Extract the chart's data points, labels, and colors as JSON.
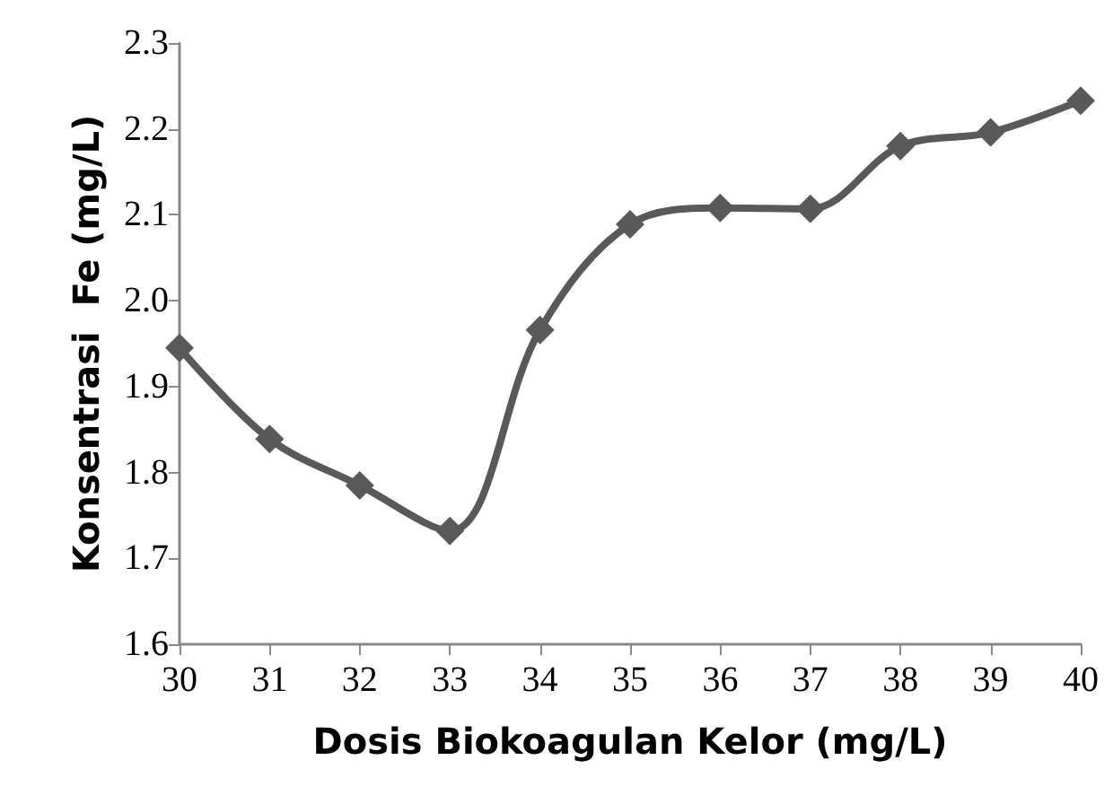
{
  "chart_data": {
    "type": "line",
    "xlabel": "Dosis Biokoagulan Kelor (mg/L)",
    "ylabel": "Konsentrasi  Fe (mg/L)",
    "x": [
      30,
      31,
      32,
      33,
      34,
      35,
      36,
      37,
      38,
      39,
      40
    ],
    "series": [
      {
        "color": "#595959",
        "values": [
          1.945,
          1.839,
          1.785,
          1.732,
          1.966,
          2.089,
          2.108,
          2.107,
          2.18,
          2.196,
          2.233
        ]
      }
    ],
    "xlim": [
      30,
      40
    ],
    "xticks": [
      30,
      31,
      32,
      33,
      34,
      35,
      36,
      37,
      38,
      39,
      40
    ],
    "ylim": [
      1.6,
      2.3
    ],
    "yticks": [
      {
        "value": 1.6,
        "label": "1.6"
      },
      {
        "value": 1.7,
        "label": "1.7"
      },
      {
        "value": 1.8,
        "label": "1.8"
      },
      {
        "value": 1.9,
        "label": "1.9"
      },
      {
        "value": 2.0,
        "label": "2.0"
      },
      {
        "value": 2.1,
        "label": "2.1"
      },
      {
        "value": 2.2,
        "label": "2.2"
      },
      {
        "value": 2.3,
        "label": "2.3"
      }
    ],
    "marker": "diamond",
    "line_style": "solid"
  }
}
